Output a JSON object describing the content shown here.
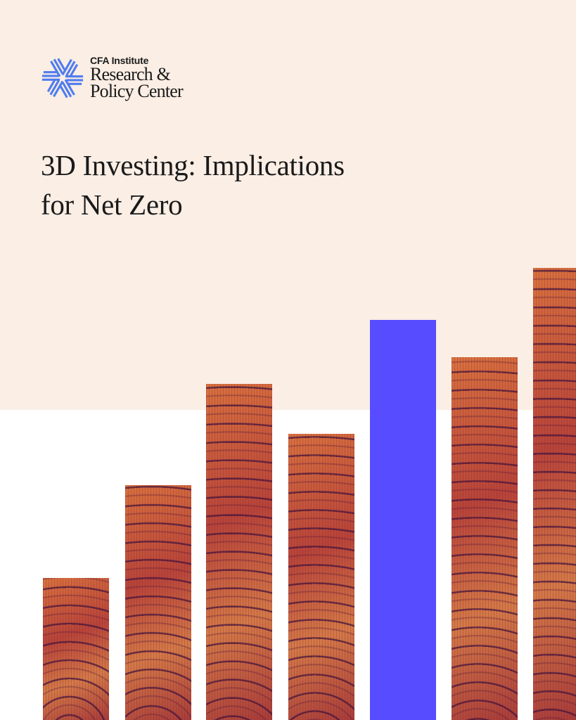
{
  "logo": {
    "org": "CFA Institute",
    "unit_line1": "Research &",
    "unit_line2": "Policy Center",
    "mark_color": "#4f7cf0"
  },
  "title": {
    "line1": "3D Investing: Implications",
    "line2": "for Net Zero"
  },
  "colors": {
    "background": "#faeee5",
    "accent_bar": "#574cff"
  }
}
